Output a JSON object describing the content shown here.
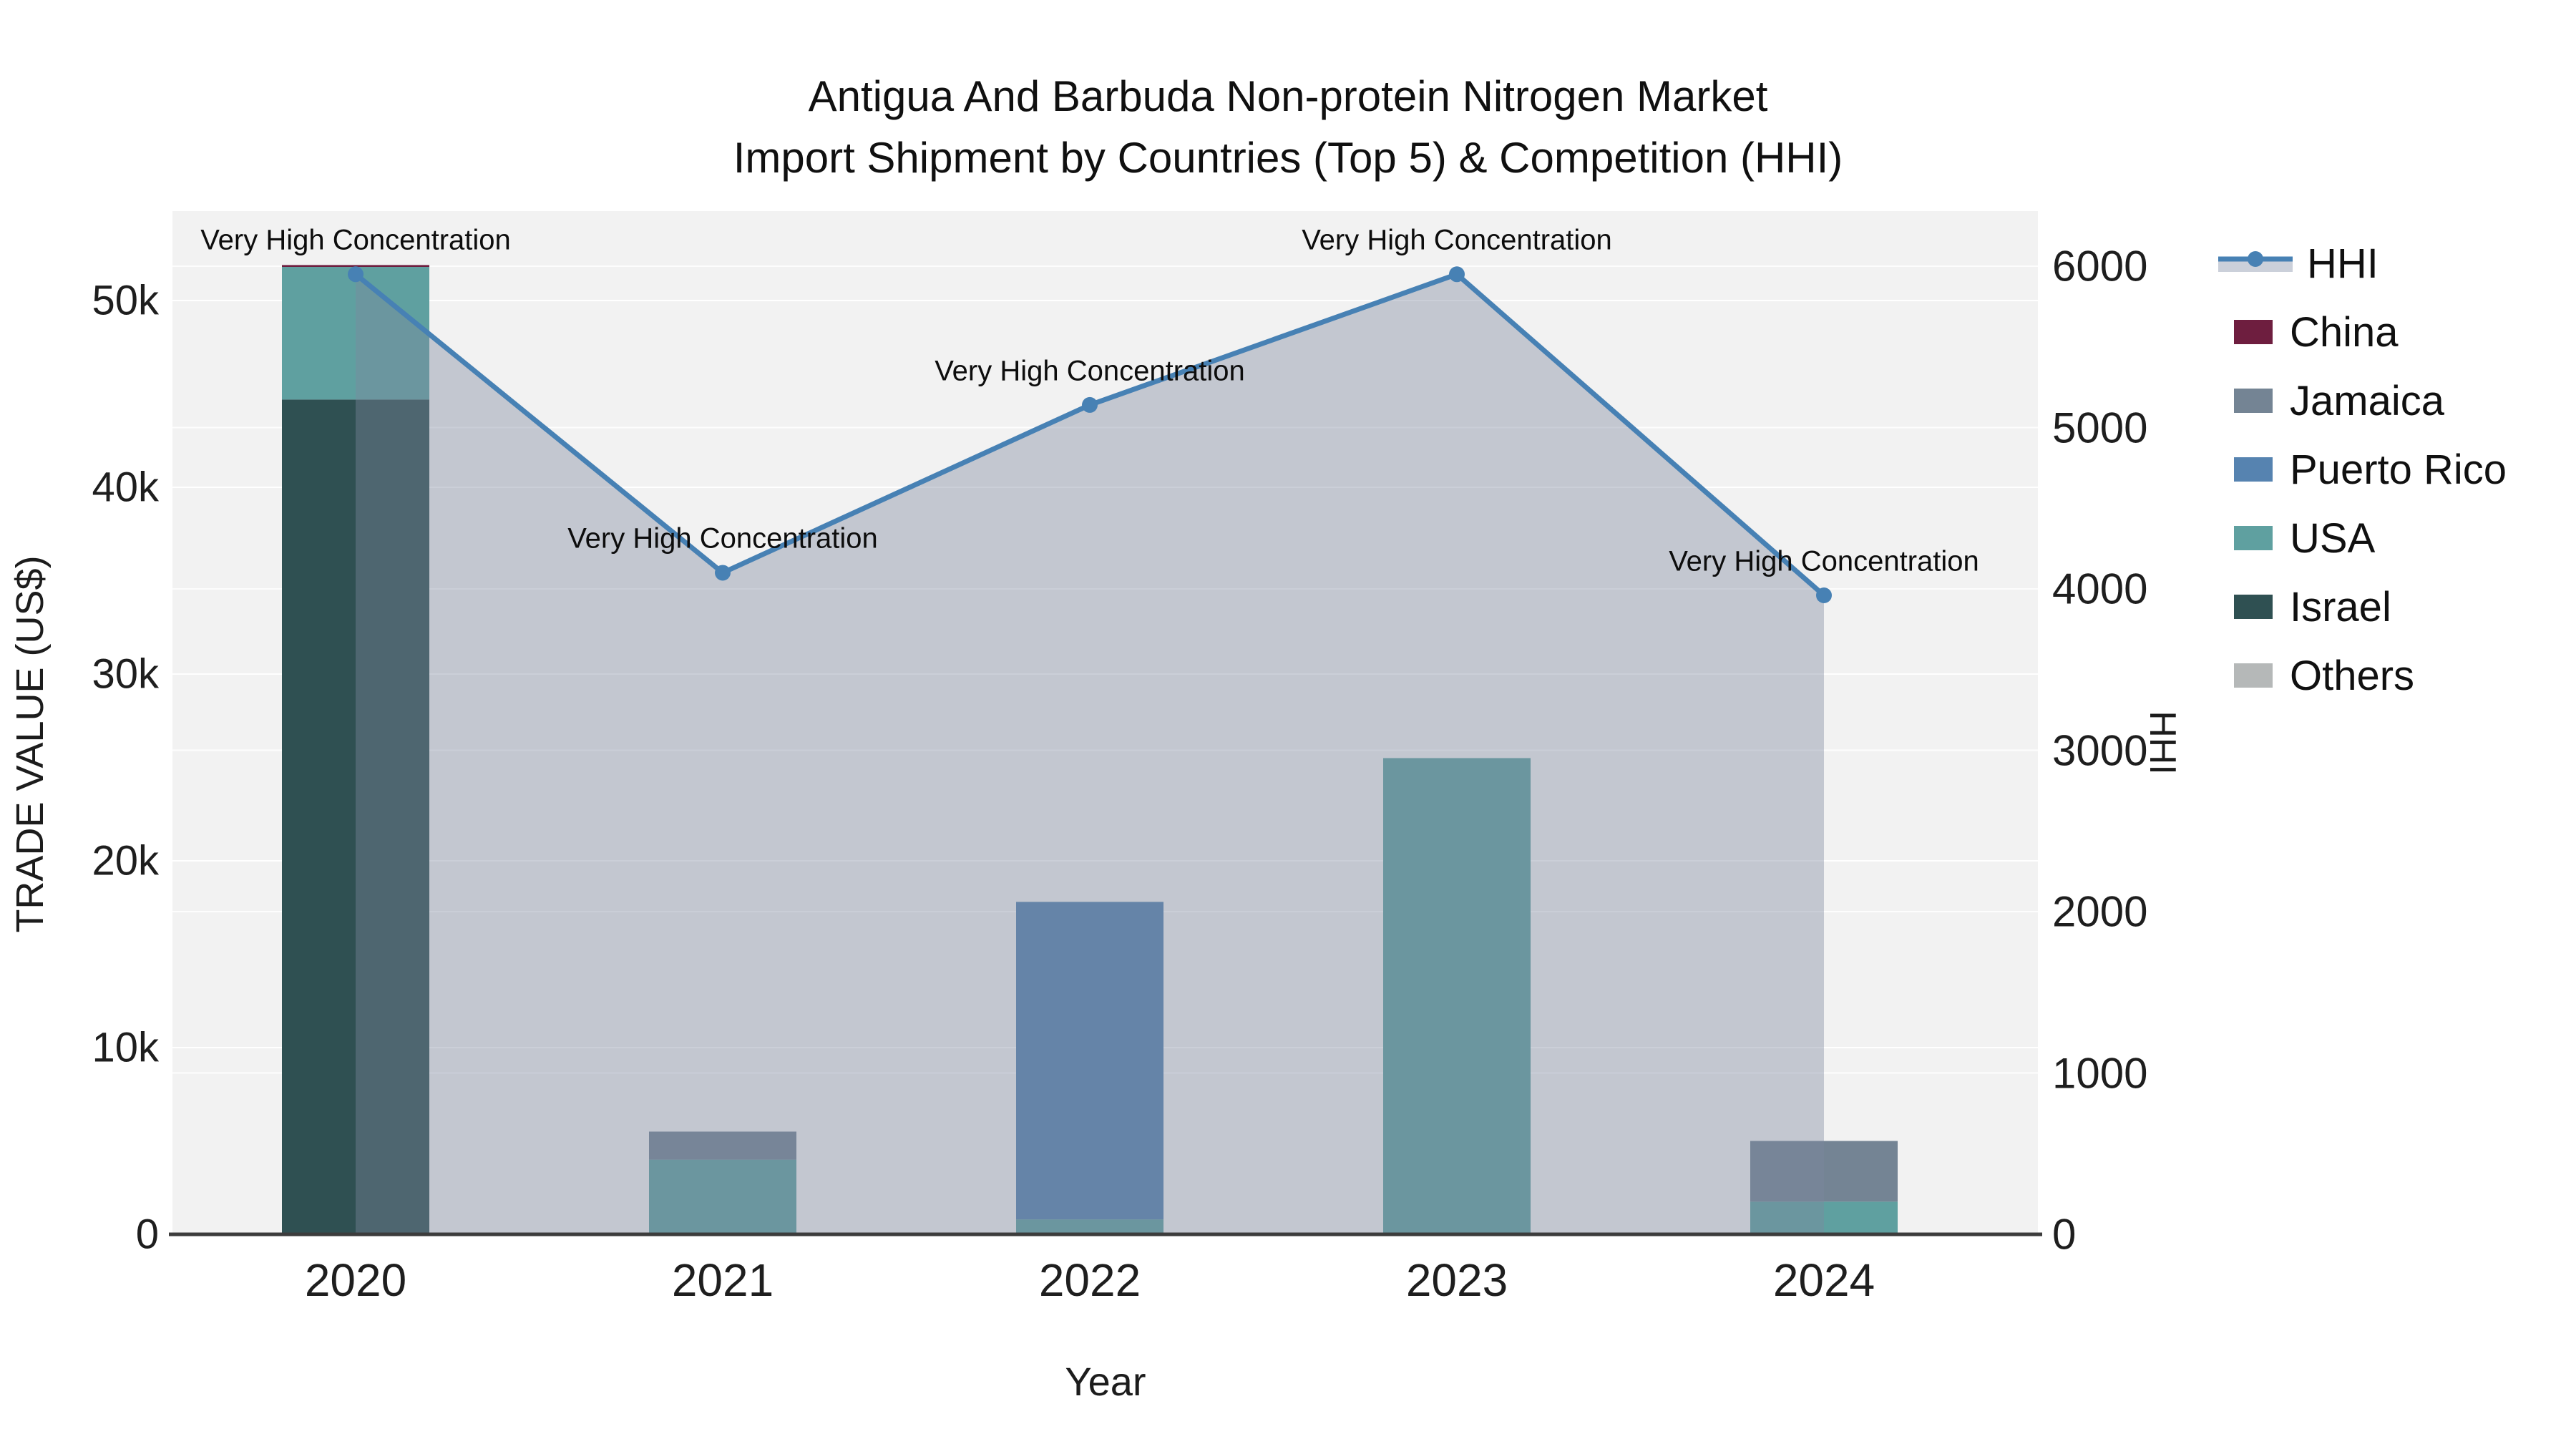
{
  "title": {
    "line1": "Antigua And Barbuda Non-protein Nitrogen Market",
    "line2": "Import Shipment by Countries (Top 5) & Competition (HHI)"
  },
  "axes": {
    "x": {
      "title": "Year",
      "ticks": [
        "2020",
        "2021",
        "2022",
        "2023",
        "2024"
      ]
    },
    "y_left": {
      "title": "TRADE VALUE (US$)",
      "ticks": [
        "0",
        "10k",
        "20k",
        "30k",
        "40k",
        "50k"
      ],
      "tick_values": [
        0,
        10000,
        20000,
        30000,
        40000,
        50000
      ]
    },
    "y_right": {
      "title": "HHI",
      "ticks": [
        "0",
        "1000",
        "2000",
        "3000",
        "4000",
        "5000",
        "6000"
      ],
      "tick_values": [
        0,
        1000,
        2000,
        3000,
        4000,
        5000,
        6000
      ]
    }
  },
  "legend": {
    "items": [
      {
        "label": "HHI",
        "kind": "line"
      },
      {
        "label": "China",
        "kind": "swatch",
        "color": "#6E1E3F"
      },
      {
        "label": "Jamaica",
        "kind": "swatch",
        "color": "#748494"
      },
      {
        "label": "Puerto Rico",
        "kind": "swatch",
        "color": "#5683B0"
      },
      {
        "label": "USA",
        "kind": "swatch",
        "color": "#5FA0A0"
      },
      {
        "label": "Israel",
        "kind": "swatch",
        "color": "#2F5052"
      },
      {
        "label": "Others",
        "kind": "swatch",
        "color": "#B5B8B8"
      }
    ]
  },
  "annotations": {
    "texts": [
      "Very High Concentration",
      "Very High Concentration",
      "Very High Concentration",
      "Very High Concentration",
      "Very High Concentration"
    ]
  },
  "chart_data": {
    "type": "bar+line",
    "categories": [
      "2020",
      "2021",
      "2022",
      "2023",
      "2024"
    ],
    "bar_unit": "US$",
    "stack_order_bottom_to_top": [
      "Israel",
      "USA",
      "Puerto Rico",
      "Jamaica",
      "China",
      "Others"
    ],
    "bar_series": [
      {
        "name": "China",
        "color": "#6E1E3F",
        "values": [
          100,
          0,
          0,
          0,
          0
        ]
      },
      {
        "name": "Jamaica",
        "color": "#748494",
        "values": [
          0,
          1500,
          0,
          0,
          3250
        ]
      },
      {
        "name": "Puerto Rico",
        "color": "#5683B0",
        "values": [
          0,
          0,
          17000,
          0,
          0
        ]
      },
      {
        "name": "USA",
        "color": "#5FA0A0",
        "values": [
          7100,
          4000,
          800,
          25500,
          1750
        ]
      },
      {
        "name": "Israel",
        "color": "#2F5052",
        "values": [
          44700,
          0,
          0,
          0,
          0
        ]
      },
      {
        "name": "Others",
        "color": "#B5B8B8",
        "values": [
          0,
          0,
          0,
          0,
          0
        ]
      }
    ],
    "line_series": {
      "name": "HHI",
      "color": "#4781B4",
      "area_fill": "rgba(124,135,158,0.40)",
      "values": [
        5950,
        4100,
        5140,
        5950,
        3960
      ]
    },
    "title": "Antigua And Barbuda Non-protein Nitrogen Market Import Shipment by Countries (Top 5) & Competition (HHI)",
    "xlabel": "Year",
    "ylabel_left": "TRADE VALUE (US$)",
    "ylabel_right": "HHI",
    "ylim_left": [
      0,
      54800
    ],
    "ylim_right": [
      0,
      6340
    ],
    "grid": true,
    "legend_position": "right"
  }
}
